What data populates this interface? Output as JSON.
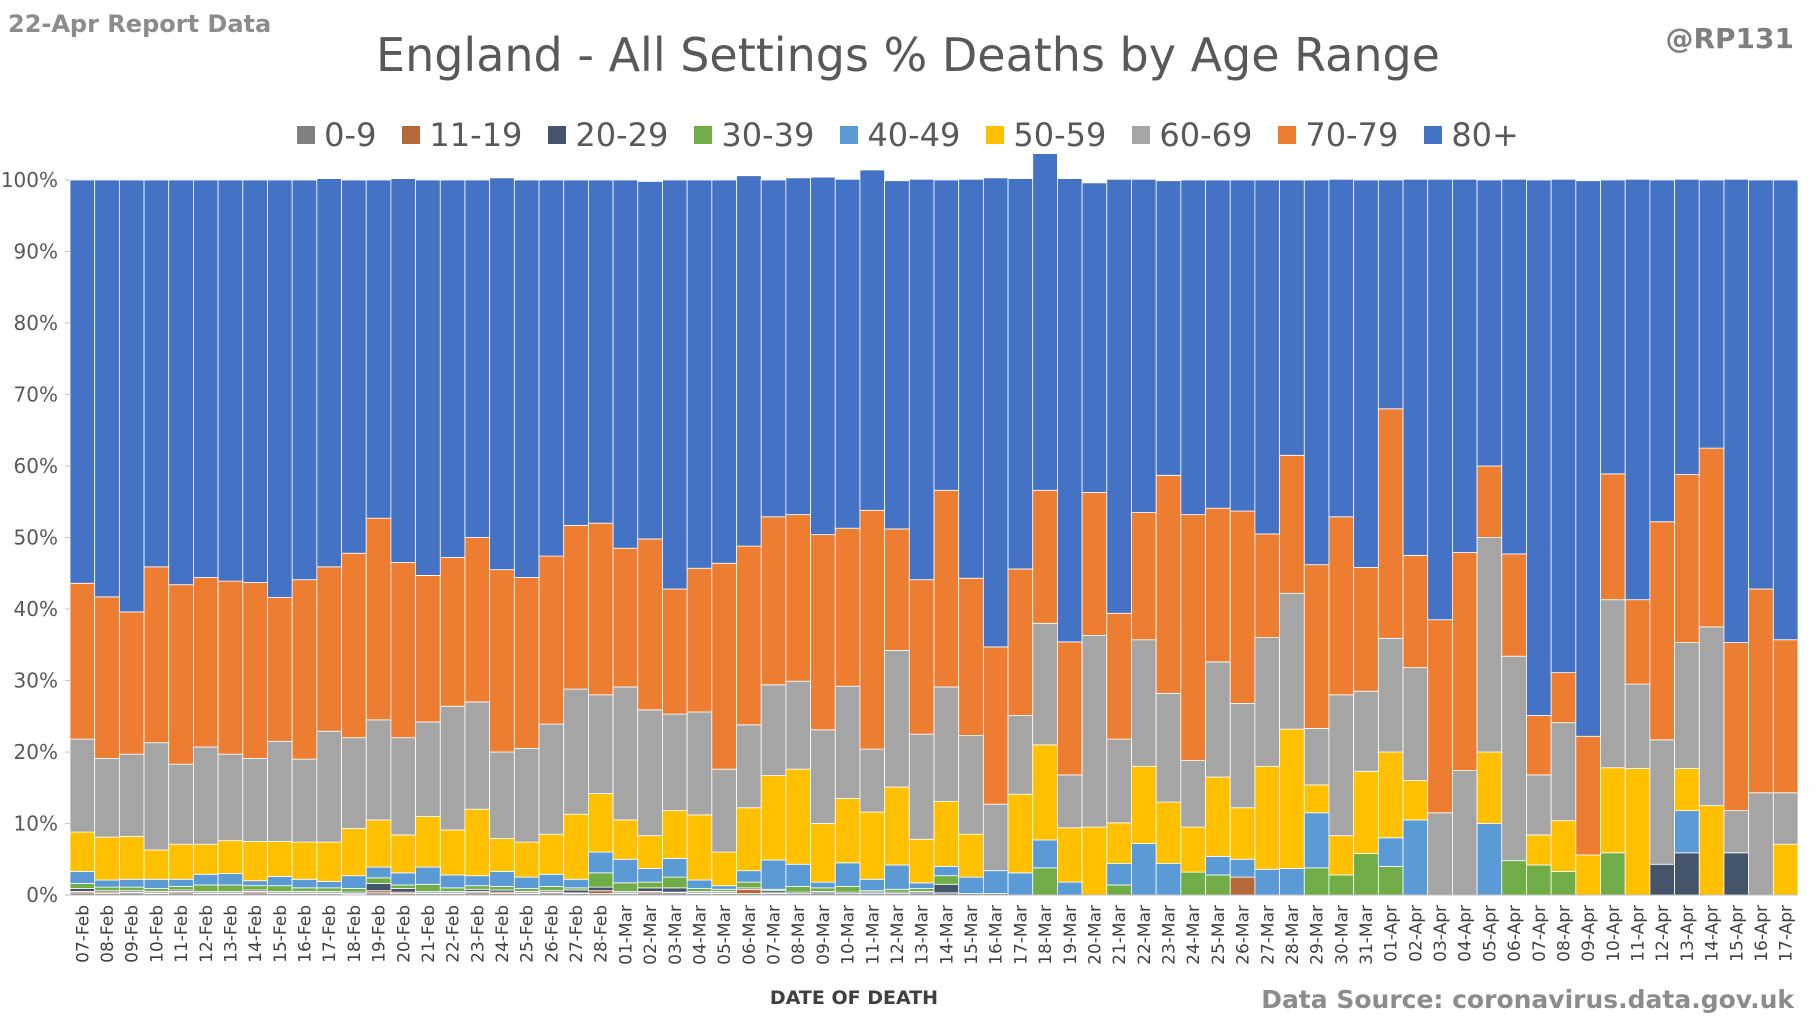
{
  "header": {
    "report_label": "22-Apr Report Data",
    "handle": "@RP131",
    "source": "Data Source: coronavirus.data.gov.uk"
  },
  "chart_data": {
    "type": "bar",
    "stacked": true,
    "title": "England - All Settings % Deaths by Age Range",
    "xlabel": "DATE OF DEATH",
    "ylabel": "",
    "ylim": [
      0,
      100
    ],
    "y_ticks": [
      "0%",
      "10%",
      "20%",
      "30%",
      "40%",
      "50%",
      "60%",
      "70%",
      "80%",
      "90%",
      "100%"
    ],
    "legend_position": "top",
    "categories": [
      "07-Feb",
      "08-Feb",
      "09-Feb",
      "10-Feb",
      "11-Feb",
      "12-Feb",
      "13-Feb",
      "14-Feb",
      "15-Feb",
      "16-Feb",
      "17-Feb",
      "18-Feb",
      "19-Feb",
      "20-Feb",
      "21-Feb",
      "22-Feb",
      "23-Feb",
      "24-Feb",
      "25-Feb",
      "26-Feb",
      "27-Feb",
      "28-Feb",
      "01-Mar",
      "02-Mar",
      "03-Mar",
      "04-Mar",
      "05-Mar",
      "06-Mar",
      "07-Mar",
      "08-Mar",
      "09-Mar",
      "10-Mar",
      "11-Mar",
      "12-Mar",
      "13-Mar",
      "14-Mar",
      "15-Mar",
      "16-Mar",
      "17-Mar",
      "18-Mar",
      "19-Mar",
      "20-Mar",
      "21-Mar",
      "22-Mar",
      "23-Mar",
      "24-Mar",
      "25-Mar",
      "26-Mar",
      "27-Mar",
      "28-Mar",
      "29-Mar",
      "30-Mar",
      "31-Mar",
      "01-Apr",
      "02-Apr",
      "03-Apr",
      "04-Apr",
      "05-Apr",
      "06-Apr",
      "07-Apr",
      "08-Apr",
      "09-Apr",
      "10-Apr",
      "11-Apr",
      "12-Apr",
      "13-Apr",
      "14-Apr",
      "15-Apr",
      "16-Apr",
      "17-Apr"
    ],
    "series": [
      {
        "name": "0-9",
        "color": "#808080",
        "values": [
          0.3,
          0.2,
          0.3,
          0.2,
          0.3,
          0.2,
          0.2,
          0.3,
          0.2,
          0.2,
          0.2,
          0.1,
          0.3,
          0.2,
          0.2,
          0.2,
          0.3,
          0.2,
          0.2,
          0.3,
          0.2,
          0.2,
          0.2,
          0.3,
          0.3,
          0.2,
          0.2,
          0.2,
          0.2,
          0.2,
          0.3,
          0.2,
          0.2,
          0.2,
          0.3,
          0.3,
          0.2,
          0.2,
          0,
          0,
          0,
          0,
          0,
          0,
          0,
          0,
          0,
          0,
          0,
          0,
          0,
          0,
          0,
          0,
          0,
          0,
          0,
          0,
          0,
          0,
          0,
          0,
          0,
          0,
          0,
          0,
          0,
          0,
          0,
          0
        ]
      },
      {
        "name": "11-19",
        "color": "#b5693a",
        "values": [
          0.2,
          0.2,
          0.1,
          0.1,
          0.2,
          0.1,
          0.1,
          0.2,
          0.1,
          0.1,
          0.1,
          0.1,
          0.3,
          0.2,
          0.1,
          0.1,
          0.2,
          0.2,
          0.1,
          0.1,
          0.1,
          0.4,
          0.1,
          0.2,
          0.1,
          0.1,
          0.1,
          0.6,
          0.1,
          0,
          0,
          0,
          0,
          0,
          0,
          0,
          0,
          0,
          0,
          0,
          0,
          0,
          0,
          0,
          0,
          0,
          0,
          2.5,
          0,
          0,
          0,
          0,
          0,
          0,
          0,
          0,
          0,
          0,
          0,
          0,
          0,
          0,
          0,
          0,
          0,
          0,
          0,
          0,
          0,
          0
        ]
      },
      {
        "name": "20-29",
        "color": "#44546a",
        "values": [
          0.4,
          0.2,
          0.2,
          0.2,
          0.2,
          0.2,
          0.2,
          0.2,
          0.2,
          0.2,
          0.2,
          0.2,
          1.0,
          0.5,
          0.2,
          0.2,
          0.3,
          0.3,
          0.2,
          0.2,
          0.4,
          0.5,
          0.2,
          0.5,
          0.6,
          0.2,
          0.2,
          0.2,
          0.3,
          0.2,
          0.2,
          0.2,
          0.2,
          0.2,
          0.2,
          1.2,
          0,
          0,
          0,
          0,
          0,
          0,
          0,
          0,
          0,
          0,
          0,
          0,
          0,
          0,
          0,
          0,
          0,
          0,
          0,
          0,
          0,
          0,
          0,
          0,
          0,
          0,
          0,
          0,
          4.3,
          5.9,
          0,
          5.9,
          0,
          0
        ]
      },
      {
        "name": "30-39",
        "color": "#70ad47",
        "values": [
          0.7,
          0.5,
          0.5,
          0.4,
          0.5,
          0.9,
          0.9,
          0.6,
          0.8,
          0.5,
          0.5,
          0.5,
          0.8,
          0.5,
          1.0,
          0.5,
          0.5,
          0.5,
          0.4,
          0.6,
          0.3,
          2.0,
          1.2,
          0.8,
          1.5,
          0.4,
          0.3,
          0.8,
          0.2,
          0.8,
          0.5,
          0.8,
          0.2,
          0.4,
          0.4,
          1.2,
          0,
          0,
          0,
          3.8,
          0,
          0,
          1.4,
          0,
          0,
          3.2,
          2.8,
          0,
          0,
          0,
          3.8,
          2.8,
          5.8,
          4.0,
          0,
          0,
          0,
          0,
          4.8,
          4.2,
          3.3,
          0,
          5.9,
          0,
          0,
          0,
          0,
          0,
          0,
          0
        ]
      },
      {
        "name": "40-49",
        "color": "#5b9bd5",
        "values": [
          1.7,
          1.0,
          1.1,
          1.3,
          1.0,
          1.5,
          1.6,
          0.7,
          1.3,
          1.2,
          0.9,
          1.8,
          1.5,
          1.7,
          2.4,
          1.8,
          1.4,
          2.1,
          1.6,
          1.7,
          1.2,
          2.9,
          3.3,
          1.9,
          2.6,
          1.2,
          0.5,
          1.6,
          4.1,
          3.1,
          0.8,
          3.3,
          1.6,
          3.4,
          0.8,
          1.3,
          2.3,
          3.2,
          3.1,
          3.9,
          1.8,
          0,
          3.0,
          7.2,
          4.4,
          0,
          2.6,
          2.5,
          3.6,
          3.7,
          7.7,
          0,
          0,
          4.0,
          10.5,
          0,
          0,
          10.0,
          0,
          0,
          0,
          0,
          0,
          0,
          0,
          5.9,
          0,
          0,
          0,
          0
        ]
      },
      {
        "name": "50-59",
        "color": "#ffc000",
        "values": [
          5.5,
          6.0,
          6.0,
          4.1,
          4.9,
          4.2,
          4.6,
          5.5,
          4.9,
          5.2,
          5.5,
          6.6,
          6.6,
          5.3,
          7.1,
          6.3,
          9.3,
          4.6,
          4.9,
          5.6,
          9.1,
          8.2,
          5.5,
          4.6,
          6.7,
          9.1,
          4.7,
          8.8,
          11.8,
          13.3,
          8.2,
          9.0,
          9.4,
          10.9,
          6.1,
          9.1,
          6.0,
          0,
          11.0,
          13.3,
          7.6,
          9.5,
          5.7,
          10.8,
          8.6,
          6.3,
          11.1,
          7.2,
          14.4,
          19.5,
          3.9,
          5.5,
          11.5,
          12.0,
          5.5,
          0,
          0,
          10.0,
          0,
          4.2,
          7.1,
          5.6,
          11.9,
          17.7,
          0,
          5.9,
          12.5,
          0,
          0,
          7.1
        ]
      },
      {
        "name": "60-69",
        "color": "#a5a5a5",
        "values": [
          13.0,
          11.0,
          11.5,
          15.0,
          11.2,
          13.6,
          12.1,
          11.6,
          14.0,
          11.6,
          15.5,
          12.7,
          14.0,
          13.6,
          13.2,
          17.3,
          15.0,
          12.1,
          13.1,
          15.4,
          17.5,
          13.8,
          18.6,
          17.6,
          13.5,
          14.4,
          11.6,
          11.6,
          12.7,
          12.3,
          13.1,
          15.7,
          8.8,
          19.1,
          14.7,
          16.0,
          13.8,
          9.3,
          11.0,
          17.0,
          7.4,
          26.8,
          11.7,
          17.7,
          15.2,
          9.3,
          16.1,
          14.6,
          18.0,
          19.0,
          7.9,
          19.7,
          11.2,
          15.9,
          15.8,
          11.5,
          17.4,
          30.0,
          28.6,
          8.4,
          13.7,
          0,
          23.5,
          11.8,
          17.4,
          17.6,
          25.0,
          5.9,
          14.3,
          7.2
        ]
      },
      {
        "name": "70-79",
        "color": "#ed7d31",
        "values": [
          21.8,
          22.6,
          19.9,
          24.6,
          25.1,
          23.7,
          24.2,
          24.6,
          20.1,
          25.1,
          23.0,
          25.8,
          28.2,
          24.5,
          20.5,
          20.8,
          23.0,
          25.5,
          23.9,
          23.5,
          22.9,
          24.0,
          19.4,
          23.9,
          17.5,
          20.1,
          28.8,
          25.0,
          23.5,
          23.3,
          27.3,
          22.1,
          33.4,
          17.0,
          21.6,
          27.5,
          22.0,
          22.0,
          20.5,
          18.6,
          18.6,
          20.0,
          17.6,
          17.8,
          30.5,
          34.4,
          21.5,
          26.9,
          14.5,
          19.3,
          22.9,
          24.9,
          17.3,
          32.1,
          15.7,
          27.0,
          30.5,
          10.0,
          14.3,
          8.3,
          7.0,
          16.6,
          17.6,
          11.8,
          30.5,
          23.5,
          25.0,
          23.5,
          28.5,
          21.4
        ]
      },
      {
        "name": "80+",
        "color": "#4472c4",
        "values": [
          56.4,
          58.3,
          60.4,
          54.1,
          56.6,
          55.6,
          56.1,
          56.3,
          58.4,
          55.9,
          54.3,
          52.2,
          47.3,
          53.7,
          55.3,
          52.8,
          50.0,
          54.8,
          55.6,
          52.6,
          48.3,
          48.0,
          51.5,
          50.0,
          57.2,
          54.3,
          53.6,
          51.8,
          47.1,
          47.1,
          50.0,
          48.8,
          47.6,
          48.7,
          56.0,
          43.4,
          55.8,
          65.6,
          54.6,
          47.1,
          64.8,
          43.3,
          60.7,
          46.6,
          41.2,
          46.8,
          45.9,
          46.3,
          49.5,
          38.5,
          53.8,
          47.2,
          54.2,
          32.0,
          52.6,
          61.6,
          52.2,
          40.0,
          52.4,
          74.9,
          69.0,
          77.7,
          41.1,
          58.8,
          47.8,
          41.3,
          37.5,
          64.8,
          57.2,
          64.3
        ]
      }
    ]
  }
}
